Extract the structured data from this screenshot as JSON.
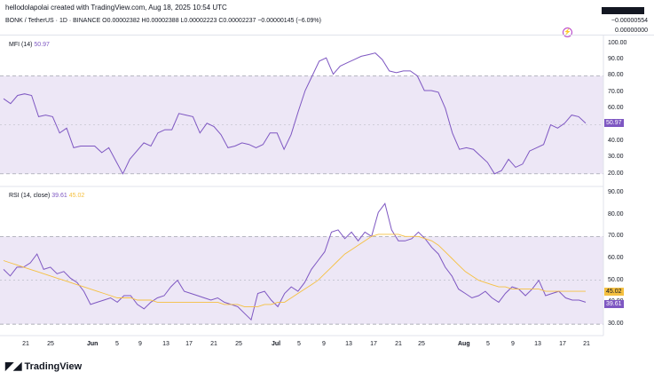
{
  "header": {
    "credit": "hellodolapolai created with TradingView.com, Aug 18, 2025 10:54 UTC",
    "pair_line": "BONK / TetherUS · 1D · BINANCE  O0.00002382  H0.00002388  L0.00002223  C0.00002237  −0.00000145 (−6.09%)",
    "right_value_1": "−0.00000554",
    "right_value_2": "0.00000000",
    "lightning_icon": "lightning-icon"
  },
  "mfi": {
    "label": "MFI (14)",
    "value": "50.97",
    "badge": "50.97",
    "yticks": [
      "100.00",
      "90.00",
      "80.00",
      "70.00",
      "60.00",
      "50.00",
      "40.00",
      "30.00",
      "20.00"
    ]
  },
  "rsi": {
    "label": "RSI (14, close)",
    "value": "39.61",
    "ma_value": "45.02",
    "badge_rsi": "39.61",
    "badge_ma": "45.02",
    "yticks": [
      "90.00",
      "80.00",
      "70.00",
      "60.00",
      "50.00",
      "40.00",
      "30.00"
    ]
  },
  "xaxis": {
    "labels": [
      "21",
      "25",
      "Jun",
      "5",
      "9",
      "13",
      "17",
      "21",
      "25",
      "Jul",
      "5",
      "9",
      "13",
      "17",
      "21",
      "25",
      "Aug",
      "5",
      "9",
      "13",
      "17",
      "21"
    ]
  },
  "brand": {
    "logo_text": "TradingView"
  },
  "colors": {
    "line": "#7e57c2",
    "ma": "#f5c040",
    "band": "#ede7f6",
    "green": "#26a69a"
  },
  "chart_data": [
    {
      "type": "line",
      "title": "MFI (14)",
      "ylim": [
        15,
        102
      ],
      "band": [
        20,
        80
      ],
      "series": [
        {
          "name": "MFI (14)",
          "values": [
            66,
            63,
            68,
            69,
            68,
            55,
            56,
            55,
            45,
            48,
            36,
            37,
            37,
            37,
            33,
            36,
            28,
            20,
            29,
            34,
            39,
            37,
            45,
            47,
            47,
            57,
            56,
            55,
            45,
            51,
            49,
            44,
            36,
            37,
            39,
            38,
            36,
            38,
            45,
            45,
            35,
            44,
            58,
            71,
            80,
            89,
            91,
            81,
            86,
            88,
            90,
            92,
            93,
            94,
            90,
            83,
            82,
            83,
            83,
            80,
            71,
            71,
            70,
            60,
            45,
            35,
            36,
            35,
            31,
            27,
            20,
            22,
            29,
            24,
            26,
            34,
            36,
            38,
            50,
            48,
            51,
            56,
            55,
            51
          ]
        }
      ],
      "grid": true
    },
    {
      "type": "line",
      "title": "RSI (14, close)",
      "ylim": [
        26,
        92
      ],
      "band": [
        30,
        70
      ],
      "series": [
        {
          "name": "RSI (14, close)",
          "values": [
            55,
            52,
            56,
            56,
            58,
            62,
            55,
            56,
            53,
            54,
            51,
            49,
            45,
            39,
            40,
            41,
            42,
            40,
            43,
            43,
            39,
            37,
            40,
            42,
            43,
            47,
            50,
            45,
            44,
            43,
            42,
            41,
            42,
            40,
            39,
            38,
            35,
            32,
            44,
            45,
            41,
            38,
            44,
            47,
            45,
            49,
            55,
            59,
            63,
            72,
            73,
            69,
            72,
            68,
            72,
            70,
            81,
            85,
            73,
            68,
            68,
            69,
            72,
            69,
            65,
            62,
            56,
            52,
            46,
            44,
            42,
            43,
            45,
            42,
            40,
            44,
            47,
            46,
            43,
            46,
            50,
            43,
            44,
            45,
            42,
            41,
            41,
            40
          ]
        },
        {
          "name": "MA",
          "values": [
            59,
            58,
            57,
            56,
            55,
            54,
            53,
            52,
            51,
            50,
            49,
            48,
            47,
            46,
            45,
            44,
            43,
            42,
            42,
            42,
            41,
            41,
            41,
            40,
            40,
            40,
            40,
            40,
            40,
            40,
            40,
            40,
            40,
            39,
            39,
            39,
            38,
            38,
            38,
            39,
            39,
            40,
            40,
            42,
            44,
            46,
            48,
            50,
            53,
            56,
            59,
            62,
            64,
            66,
            68,
            70,
            71,
            71,
            71,
            71,
            70,
            70,
            70,
            69,
            68,
            66,
            63,
            60,
            57,
            54,
            52,
            50,
            49,
            48,
            47,
            47,
            46,
            46,
            46,
            46,
            46,
            45,
            45,
            45,
            45,
            45,
            45,
            45
          ]
        }
      ],
      "grid": true
    }
  ]
}
